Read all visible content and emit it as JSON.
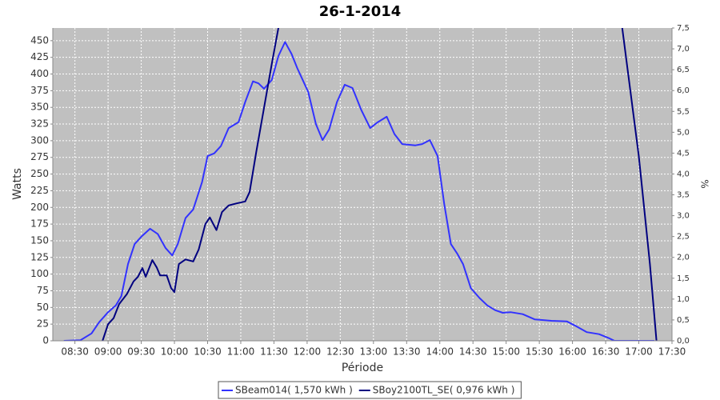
{
  "chart_data": {
    "type": "line",
    "title": "26-1-2014",
    "x_label": "Période",
    "y_label": "Watts",
    "y2_label": "%",
    "grid": true,
    "background": "#c0c0c0",
    "xlim": [
      490,
      1050
    ],
    "xticks": [
      {
        "value": 510,
        "label": "08:30"
      },
      {
        "value": 540,
        "label": "09:00"
      },
      {
        "value": 570,
        "label": "09:30"
      },
      {
        "value": 600,
        "label": "10:00"
      },
      {
        "value": 630,
        "label": "10:30"
      },
      {
        "value": 660,
        "label": "11:00"
      },
      {
        "value": 690,
        "label": "11:30"
      },
      {
        "value": 720,
        "label": "12:00"
      },
      {
        "value": 750,
        "label": "12:30"
      },
      {
        "value": 780,
        "label": "13:00"
      },
      {
        "value": 810,
        "label": "13:30"
      },
      {
        "value": 840,
        "label": "14:00"
      },
      {
        "value": 870,
        "label": "14:30"
      },
      {
        "value": 900,
        "label": "15:00"
      },
      {
        "value": 930,
        "label": "15:30"
      },
      {
        "value": 960,
        "label": "16:00"
      },
      {
        "value": 990,
        "label": "16:30"
      },
      {
        "value": 1020,
        "label": "17:00"
      },
      {
        "value": 1050,
        "label": "17:30"
      }
    ],
    "ylim": [
      0,
      469
    ],
    "yticks": [
      0,
      25,
      50,
      75,
      100,
      125,
      150,
      175,
      200,
      225,
      250,
      275,
      300,
      325,
      350,
      375,
      400,
      425,
      450
    ],
    "y2lim": [
      0,
      7.5
    ],
    "y2ticks": [
      {
        "value": 0,
        "label": "0,0"
      },
      {
        "value": 0.5,
        "label": "0,5"
      },
      {
        "value": 1,
        "label": "1,0"
      },
      {
        "value": 1.5,
        "label": "1,5"
      },
      {
        "value": 2,
        "label": "2,0"
      },
      {
        "value": 2.5,
        "label": "2,5"
      },
      {
        "value": 3,
        "label": "3,0"
      },
      {
        "value": 3.5,
        "label": "3,5"
      },
      {
        "value": 4,
        "label": "4,0"
      },
      {
        "value": 4.5,
        "label": "4,5"
      },
      {
        "value": 5,
        "label": "5,0"
      },
      {
        "value": 5.5,
        "label": "5,5"
      },
      {
        "value": 6,
        "label": "6,0"
      },
      {
        "value": 6.5,
        "label": "6,5"
      },
      {
        "value": 7,
        "label": "7,0"
      },
      {
        "value": 7.5,
        "label": "7,5"
      }
    ],
    "series": [
      {
        "name": "SBeam014( 1,570 kWh )",
        "color": "#3232ff",
        "x": [
          500,
          515,
          525,
          532,
          540,
          547,
          552,
          558,
          564,
          570,
          578,
          585,
          592,
          598,
          603,
          610,
          617,
          625,
          630,
          636,
          642,
          649,
          658,
          664,
          671,
          676,
          681,
          688,
          694,
          700,
          706,
          711,
          721,
          728,
          734,
          740,
          747,
          754,
          761,
          769,
          777,
          784,
          792,
          799,
          806,
          818,
          824,
          831,
          838,
          844,
          850,
          856,
          861,
          868,
          876,
          883,
          890,
          897,
          904,
          915,
          926,
          941,
          955,
          962,
          973,
          984,
          993,
          998,
          1034
        ],
        "values": [
          0,
          1,
          11,
          28,
          43,
          53,
          67,
          115,
          145,
          156,
          168,
          160,
          139,
          128,
          145,
          184,
          197,
          238,
          277,
          281,
          292,
          319,
          328,
          358,
          389,
          386,
          378,
          391,
          427,
          448,
          430,
          409,
          373,
          325,
          301,
          317,
          358,
          384,
          379,
          346,
          319,
          328,
          336,
          310,
          295,
          293,
          295,
          301,
          277,
          205,
          145,
          130,
          115,
          79,
          64,
          53,
          46,
          42,
          43,
          40,
          32,
          30,
          29,
          23,
          13,
          10,
          4,
          0,
          0
        ]
      },
      {
        "name": "SBoy2100TL_SE( 0,976 kWh )",
        "color": "#000080",
        "x": [
          535,
          540,
          545,
          550,
          557,
          563,
          567,
          571,
          574,
          580,
          584,
          587,
          593,
          597,
          600,
          604,
          610,
          617,
          622,
          628,
          632,
          638,
          643,
          649,
          656,
          664,
          668,
          674,
          681,
          688,
          694,
          850,
          1005,
          1020,
          1030,
          1036
        ],
        "values": [
          0,
          25,
          34,
          55,
          70,
          89,
          96,
          109,
          96,
          121,
          110,
          98,
          98,
          79,
          73,
          115,
          122,
          119,
          137,
          175,
          185,
          166,
          193,
          203,
          206,
          209,
          223,
          283,
          349,
          415,
          469,
          null,
          469,
          277,
          115,
          0
        ]
      }
    ]
  }
}
